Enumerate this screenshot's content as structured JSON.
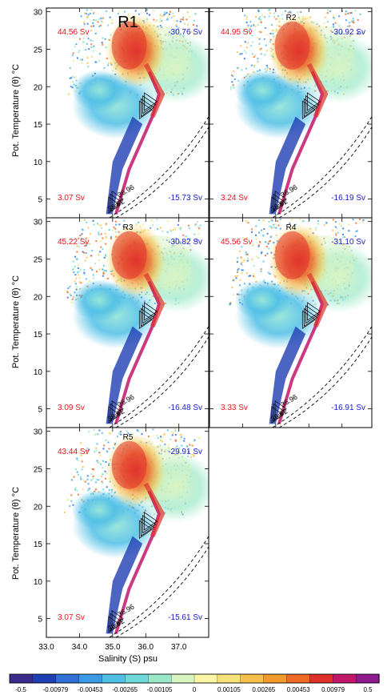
{
  "figure": {
    "ylabel": "Pot. Temperature (θ) °C",
    "xlabel": "Salinity (S) psu"
  },
  "chart_data": {
    "type": "heatmap",
    "xlim": [
      33.0,
      37.9
    ],
    "ylim": [
      2.5,
      30.5
    ],
    "xticks": [
      "33.0",
      "34.0",
      "35.0",
      "36.0",
      "37.0"
    ],
    "yticks": [
      "5",
      "10",
      "15",
      "20",
      "25",
      "30"
    ],
    "panels": [
      {
        "label": "R1",
        "pos_top_left": "44.56 Sv",
        "neg_top_right": "-30.76 Sv",
        "pos_bottom_left": "3.07 Sv",
        "neg_bottom_right": "-15.73 Sv"
      },
      {
        "label": "R2",
        "pos_top_left": "44.95 Sv",
        "neg_top_right": "-30.92 Sv",
        "pos_bottom_left": "3.24 Sv",
        "neg_bottom_right": "-16.19 Sv"
      },
      {
        "label": "R3",
        "pos_top_left": "45.22 Sv",
        "neg_top_right": "-30.82 Sv",
        "pos_bottom_left": "3.09 Sv",
        "neg_bottom_right": "-16.48 Sv"
      },
      {
        "label": "R4",
        "pos_top_left": "45.56 Sv",
        "neg_top_right": "-31.10 Sv",
        "pos_bottom_left": "3.33 Sv",
        "neg_bottom_right": "-16.91 Sv"
      },
      {
        "label": "R5",
        "pos_top_left": "43.44 Sv",
        "neg_top_right": "-29.91 Sv",
        "pos_bottom_left": "3.07 Sv",
        "neg_bottom_right": "-15.61 Sv"
      }
    ],
    "density_contour_labels": [
      "36.62",
      "36.96"
    ],
    "colorbar": {
      "colors": [
        "#3a2a8e",
        "#1f3fb4",
        "#2f6fd6",
        "#3b9ae6",
        "#4fbfe6",
        "#6fd8d8",
        "#9be8c8",
        "#d8f5c0",
        "#fbf7a6",
        "#f6e27a",
        "#f6c14a",
        "#f39a2c",
        "#ee6a24",
        "#e0302a",
        "#c2186b",
        "#8e1a8e"
      ],
      "ticks": [
        "-0.5",
        "-0.00979",
        "-0.00453",
        "-0.00265",
        "-0.00105",
        "0",
        "0.00105",
        "0.00265",
        "0.00453",
        "0.00979",
        "0.5"
      ]
    },
    "colors": {
      "positive_text": "#e8121a",
      "negative_text": "#1418c8"
    }
  }
}
